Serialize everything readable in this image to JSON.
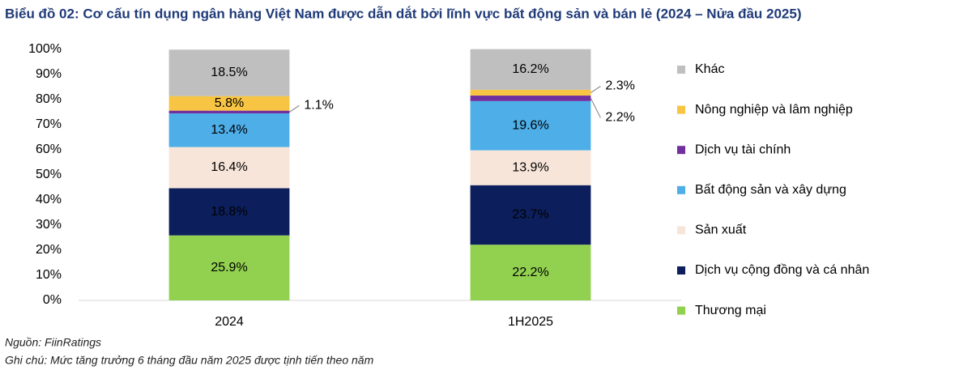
{
  "chart_data": {
    "type": "stacked_bar",
    "title": "Biểu đồ 02: Cơ cấu tín dụng ngân hàng Việt Nam được dẫn dắt bởi lĩnh vực bất động sản và bán lẻ (2024 – Nửa đầu 2025)",
    "source": "Nguồn: FiinRatings",
    "note": "Ghi chú: Mức tăng trưởng 6 tháng đầu năm 2025 được tịnh tiến theo năm",
    "categories": [
      "2024",
      "1H2025"
    ],
    "series": [
      {
        "name": "Thương mại",
        "color": "#92d050",
        "values": [
          25.9,
          22.2
        ],
        "value_labels": [
          "25.9%",
          "22.2%"
        ]
      },
      {
        "name": "Dịch vụ cộng đồng và cá nhân",
        "color": "#0c1f5c",
        "values": [
          18.8,
          23.7
        ],
        "value_labels": [
          "18.8%",
          "23.7%"
        ]
      },
      {
        "name": "Sản xuất",
        "color": "#f8e5d9",
        "values": [
          16.4,
          13.9
        ],
        "value_labels": [
          "16.4%",
          "13.9%"
        ]
      },
      {
        "name": "Bất động sản và xây dựng",
        "color": "#4eaee8",
        "values": [
          13.4,
          19.6
        ],
        "value_labels": [
          "13.4%",
          "19.6%"
        ]
      },
      {
        "name": "Dịch vụ tài chính",
        "color": "#7030a0",
        "values": [
          1.1,
          2.2
        ],
        "value_labels": [
          "1.1%",
          "2.2%"
        ]
      },
      {
        "name": "Nông nghiệp và lâm nghiệp",
        "color": "#f7c443",
        "values": [
          5.8,
          2.3
        ],
        "value_labels": [
          "5.8%",
          "2.3%"
        ]
      },
      {
        "name": "Khác",
        "color": "#bfbfbf",
        "values": [
          18.5,
          16.2
        ],
        "value_labels": [
          "18.5%",
          "16.2%"
        ]
      }
    ],
    "ylim": [
      0,
      100
    ],
    "yticks": [
      {
        "value": 0,
        "label": "0%"
      },
      {
        "value": 10,
        "label": "10%"
      },
      {
        "value": 20,
        "label": "20%"
      },
      {
        "value": 30,
        "label": "30%"
      },
      {
        "value": 40,
        "label": "40%"
      },
      {
        "value": 50,
        "label": "50%"
      },
      {
        "value": 60,
        "label": "60%"
      },
      {
        "value": 70,
        "label": "70%"
      },
      {
        "value": 80,
        "label": "80%"
      },
      {
        "value": 90,
        "label": "90%"
      },
      {
        "value": 100,
        "label": "100%"
      }
    ],
    "legend": "right"
  }
}
